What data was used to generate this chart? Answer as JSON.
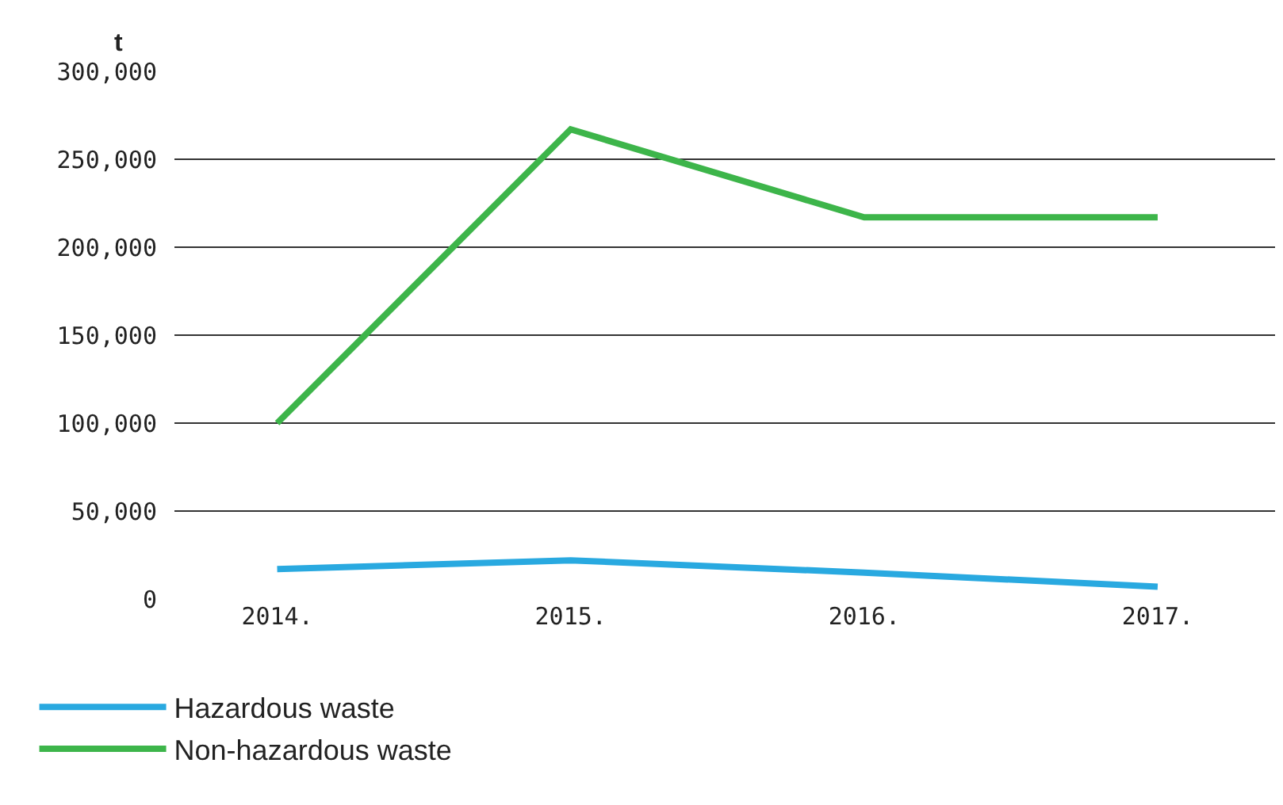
{
  "chart_data": {
    "type": "line",
    "ylabel": "t",
    "categories": [
      "2014.",
      "2015.",
      "2016.",
      "2017."
    ],
    "series": [
      {
        "name": "Hazardous waste",
        "color": "#29a9e0",
        "values": [
          17000,
          22000,
          15000,
          7000
        ]
      },
      {
        "name": "Non-hazardous waste",
        "color": "#3db54a",
        "values": [
          100000,
          267000,
          217000,
          217000
        ]
      }
    ],
    "ylim": [
      0,
      300000
    ],
    "yticks": [
      {
        "value": 0,
        "label": "0"
      },
      {
        "value": 50000,
        "label": "50,000"
      },
      {
        "value": 100000,
        "label": "100,000"
      },
      {
        "value": 150000,
        "label": "150,000"
      },
      {
        "value": 200000,
        "label": "200,000"
      },
      {
        "value": 250000,
        "label": "250,000"
      },
      {
        "value": 300000,
        "label": "300,000"
      }
    ],
    "grid": "y",
    "legend": "bottom left",
    "marker": "none",
    "line_style": "solid"
  }
}
